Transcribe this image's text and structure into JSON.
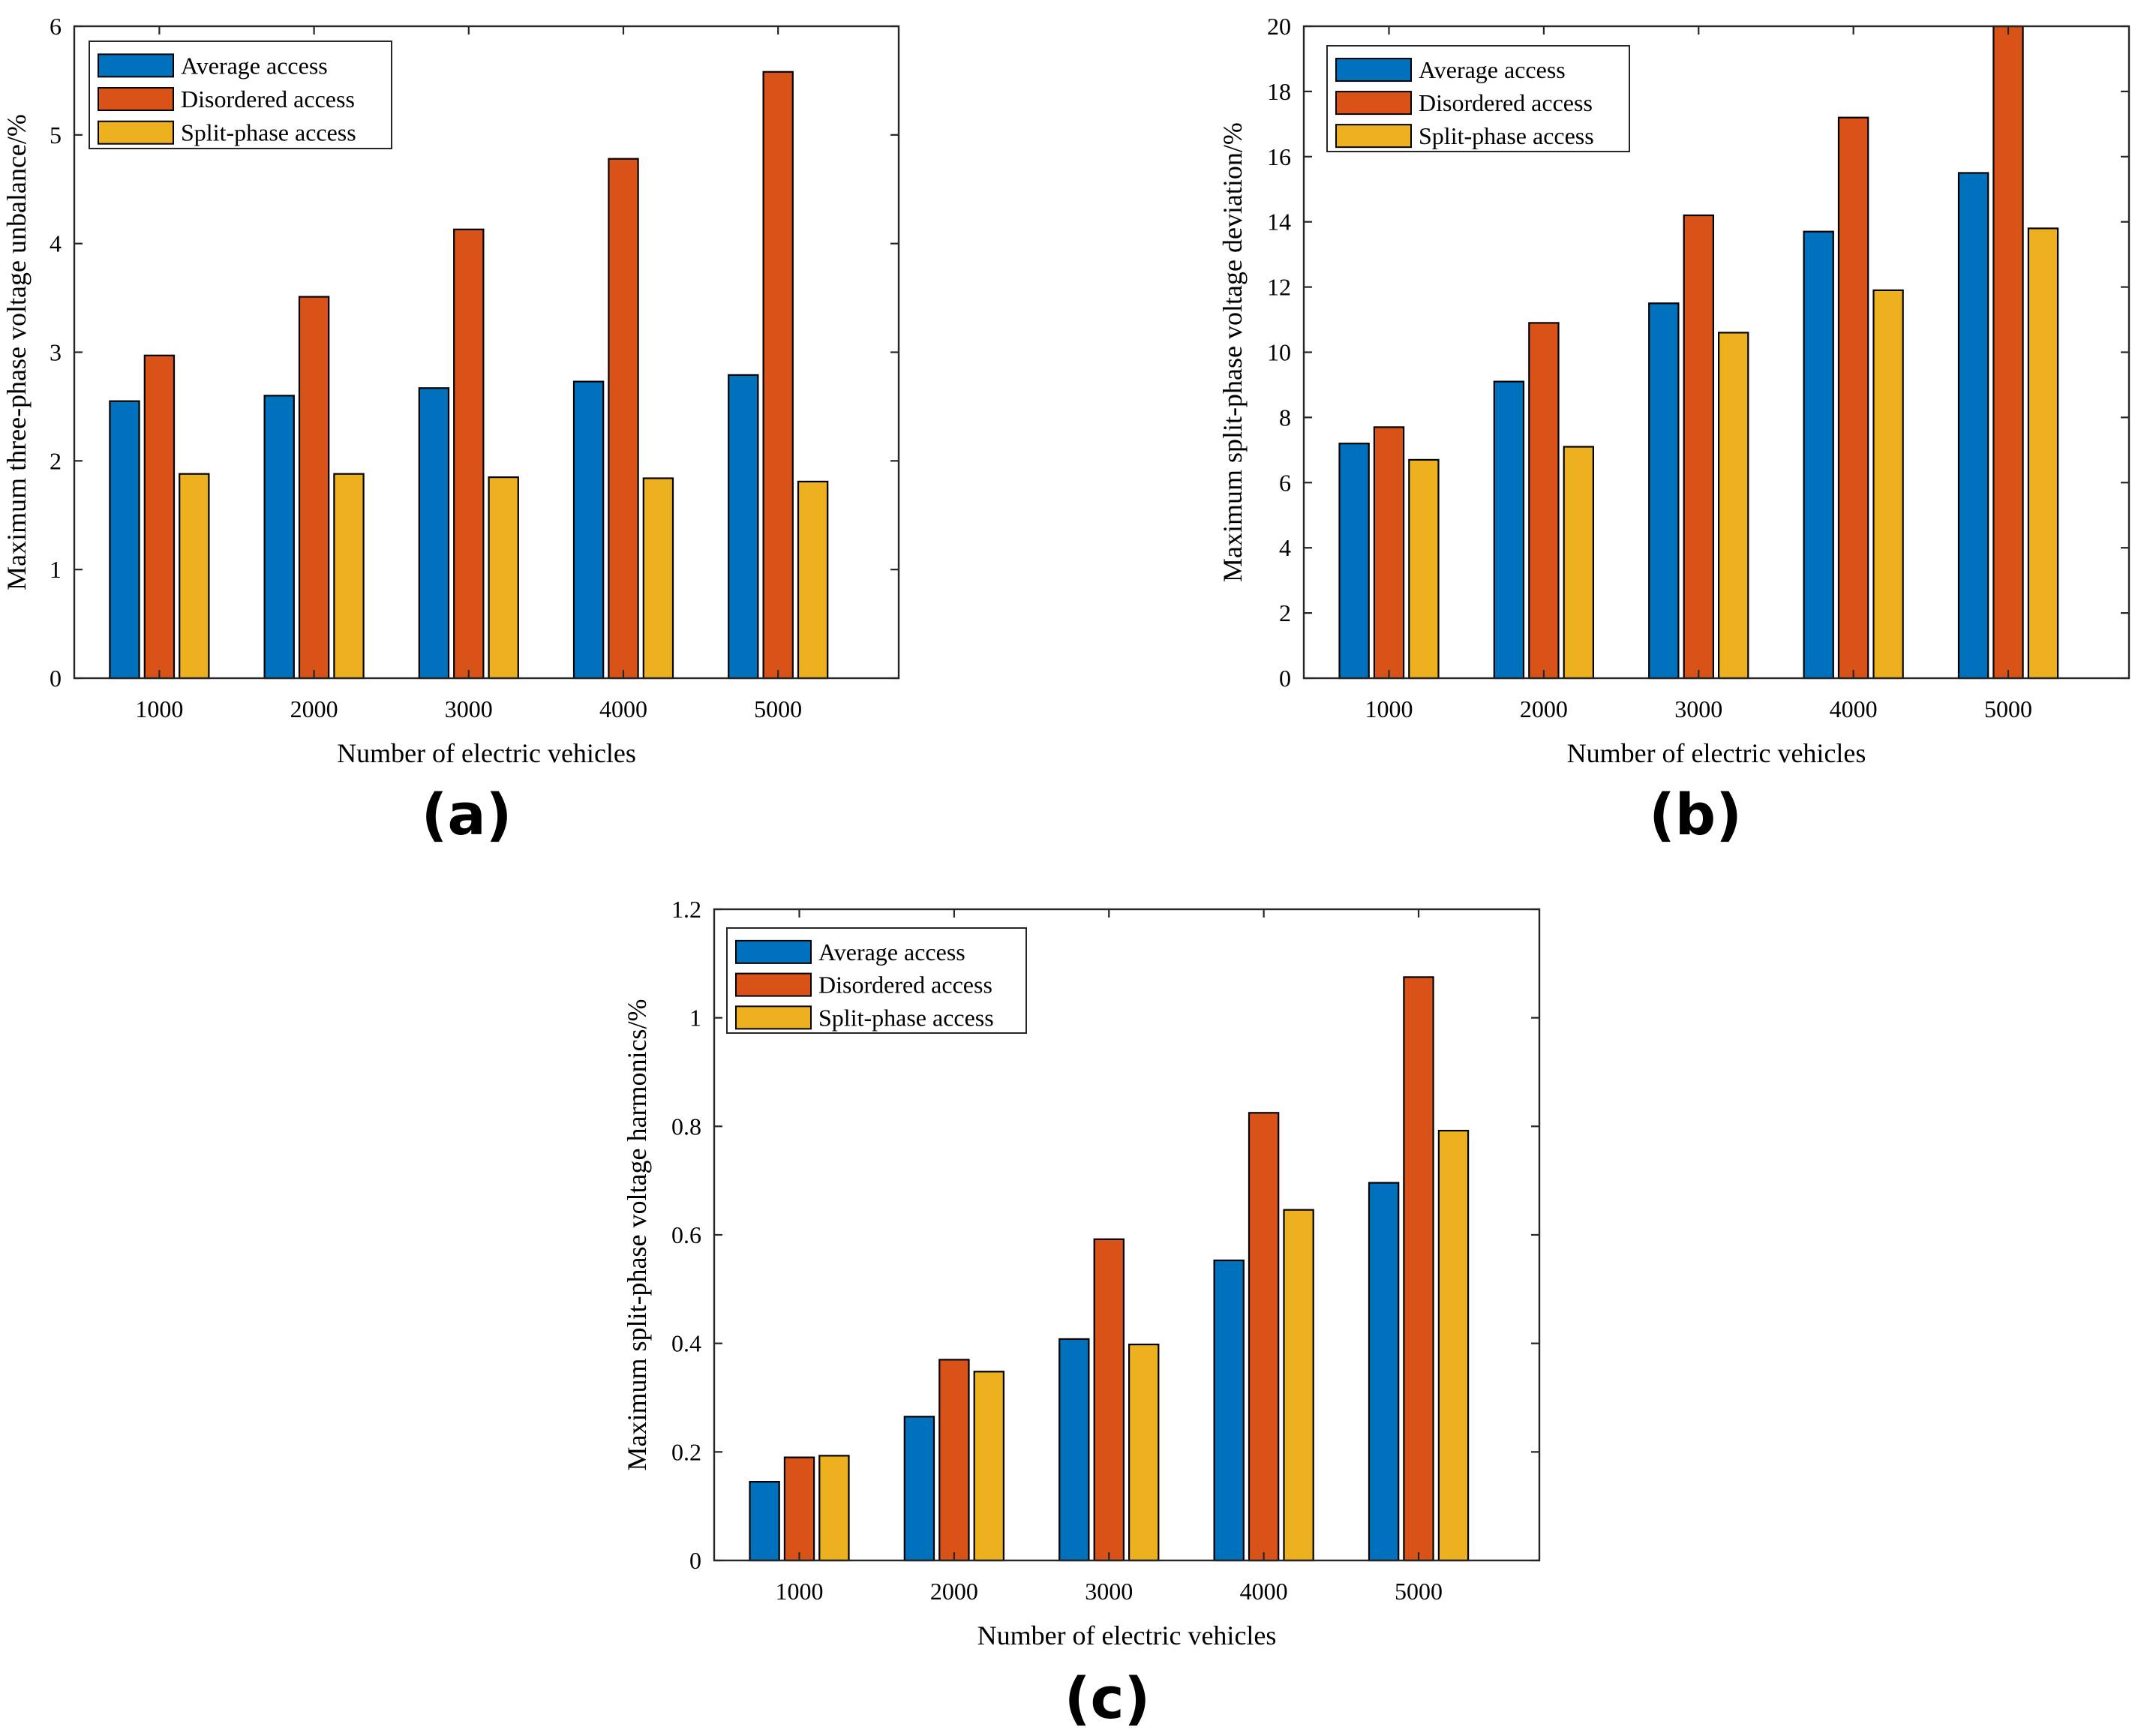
{
  "figure": {
    "colors": {
      "average": "#0072BD",
      "disordered": "#D95319",
      "split": "#EDB120",
      "axis": "#262626",
      "frame": "#000000"
    }
  },
  "chart_data": [
    {
      "type": "bar",
      "panel_label": "(a)",
      "categories": [
        "1000",
        "2000",
        "3000",
        "4000",
        "5000"
      ],
      "series": [
        {
          "name": "Average access",
          "values": [
            2.55,
            2.6,
            2.67,
            2.73,
            2.79
          ]
        },
        {
          "name": "Disordered access",
          "values": [
            2.97,
            3.51,
            4.13,
            4.78,
            5.58
          ]
        },
        {
          "name": "Split-phase access",
          "values": [
            1.88,
            1.88,
            1.85,
            1.84,
            1.81
          ]
        }
      ],
      "xlabel": "Number of electric vehicles",
      "ylabel": "Maximum three-phase voltage unbalance/%",
      "ylim": [
        0,
        6
      ],
      "yticks": [
        "0",
        "1",
        "2",
        "3",
        "4",
        "5",
        "6"
      ],
      "legend": "top-left",
      "grid": false
    },
    {
      "type": "bar",
      "panel_label": "(b)",
      "categories": [
        "1000",
        "2000",
        "3000",
        "4000",
        "5000"
      ],
      "series": [
        {
          "name": "Average access",
          "values": [
            7.2,
            9.1,
            11.5,
            13.7,
            15.5
          ]
        },
        {
          "name": "Disordered access",
          "values": [
            7.7,
            10.9,
            14.2,
            17.2,
            20.0
          ]
        },
        {
          "name": "Split-phase access",
          "values": [
            6.7,
            7.1,
            10.6,
            11.9,
            13.8
          ]
        }
      ],
      "xlabel": "Number of electric vehicles",
      "ylabel": "Maximum split-phase voltage deviation/%",
      "ylim": [
        0,
        20
      ],
      "yticks": [
        "0",
        "2",
        "4",
        "6",
        "8",
        "10",
        "12",
        "14",
        "16",
        "18",
        "20"
      ],
      "legend": "top-left",
      "grid": false
    },
    {
      "type": "bar",
      "panel_label": "(c)",
      "categories": [
        "1000",
        "2000",
        "3000",
        "4000",
        "5000"
      ],
      "series": [
        {
          "name": "Average access",
          "values": [
            0.145,
            0.265,
            0.408,
            0.553,
            0.696
          ]
        },
        {
          "name": "Disordered access",
          "values": [
            0.19,
            0.37,
            0.592,
            0.825,
            1.075
          ]
        },
        {
          "name": "Split-phase access",
          "values": [
            0.193,
            0.348,
            0.398,
            0.646,
            0.792
          ]
        }
      ],
      "xlabel": "Number of electric vehicles",
      "ylabel": "Maximum split-phase voltage harmonics/%",
      "ylim": [
        0,
        1.2
      ],
      "yticks": [
        "0",
        "0.2",
        "0.4",
        "0.6",
        "0.8",
        "1",
        "1.2"
      ],
      "legend": "top-left",
      "grid": false
    }
  ]
}
